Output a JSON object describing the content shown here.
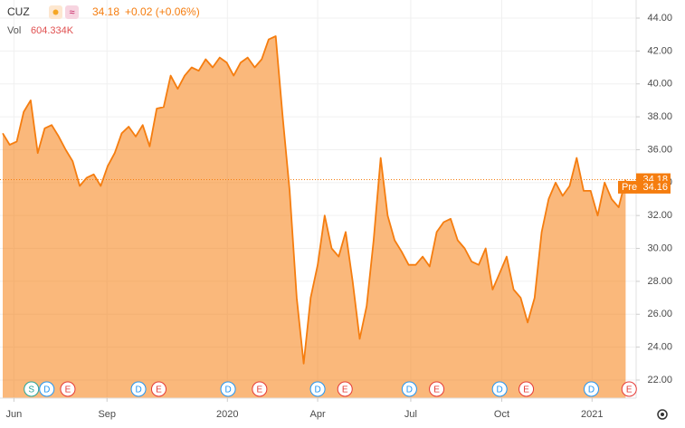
{
  "header": {
    "symbol": "CUZ",
    "price": "34.18",
    "change": "+0.02 (+0.06%)",
    "vol_label": "Vol",
    "volume": "604.334K"
  },
  "chart_data": {
    "type": "area",
    "color": "#f57d0f",
    "x": [
      0,
      1,
      2,
      3,
      4,
      5,
      6,
      7,
      8,
      9,
      10,
      11,
      12,
      13,
      14,
      15,
      16,
      17,
      18,
      19,
      20,
      21,
      22,
      23,
      24,
      25,
      26,
      27,
      28,
      29,
      30,
      31,
      32,
      33,
      34,
      35,
      36,
      37,
      38,
      39,
      40,
      41,
      42,
      43,
      44,
      45,
      46,
      47,
      48,
      49,
      50,
      51,
      52,
      53,
      54,
      55,
      56,
      57,
      58,
      59,
      60,
      61,
      62,
      63,
      64,
      65,
      66,
      67,
      68,
      69,
      70,
      71,
      72,
      73,
      74,
      75,
      76,
      77,
      78,
      79,
      80,
      81,
      82,
      83,
      84,
      85,
      86,
      87,
      88,
      89
    ],
    "series": [
      {
        "name": "CUZ",
        "color": "#f57d0f",
        "values": [
          37.0,
          36.3,
          36.5,
          38.3,
          39.0,
          35.8,
          37.3,
          37.5,
          36.8,
          36.0,
          35.3,
          33.8,
          34.3,
          34.5,
          33.8,
          35.0,
          35.8,
          37.0,
          37.4,
          36.8,
          37.5,
          36.2,
          38.5,
          38.6,
          40.5,
          39.7,
          40.5,
          41.0,
          40.8,
          41.5,
          41.0,
          41.6,
          41.3,
          40.5,
          41.3,
          41.6,
          41.0,
          41.5,
          42.7,
          42.9,
          38.0,
          33.5,
          27.0,
          23.0,
          27.0,
          29.0,
          32.0,
          30.0,
          29.5,
          31.0,
          28.0,
          24.5,
          26.5,
          30.5,
          35.5,
          32.0,
          30.5,
          29.8,
          29.0,
          29.0,
          29.5,
          28.9,
          31.0,
          31.6,
          31.8,
          30.5,
          30.0,
          29.2,
          29.0,
          30.0,
          27.5,
          28.5,
          29.5,
          27.5,
          27.0,
          25.5,
          27.0,
          31.0,
          33.0,
          34.0,
          33.2,
          33.8,
          35.5,
          33.5,
          33.5,
          32.0,
          34.0,
          33.0,
          32.5,
          34.18
        ]
      }
    ],
    "xlim": [
      0,
      90.5
    ],
    "xticks": [
      {
        "value": 1.6,
        "label": "Jun"
      },
      {
        "value": 14.9,
        "label": "Sep"
      },
      {
        "value": 32.1,
        "label": "2020"
      },
      {
        "value": 45,
        "label": "Apr"
      },
      {
        "value": 58.3,
        "label": "Jul"
      },
      {
        "value": 71.3,
        "label": "Oct"
      },
      {
        "value": 84.2,
        "label": "2021"
      }
    ],
    "ylim": [
      20.9,
      45.1
    ],
    "yticks": [
      {
        "value": 22,
        "label": "22.00"
      },
      {
        "value": 24,
        "label": "24.00"
      },
      {
        "value": 26,
        "label": "26.00"
      },
      {
        "value": 28,
        "label": "28.00"
      },
      {
        "value": 30,
        "label": "30.00"
      },
      {
        "value": 32,
        "label": "32.00"
      },
      {
        "value": 34,
        "label": "34.00"
      },
      {
        "value": 36,
        "label": "36.00"
      },
      {
        "value": 38,
        "label": "38.00"
      },
      {
        "value": 40,
        "label": "40.00"
      },
      {
        "value": 42,
        "label": "42.00"
      },
      {
        "value": 44,
        "label": "44.00"
      }
    ],
    "grid": true,
    "last_price": 34.18,
    "pre_label": "Pre",
    "pre_price": {
      "value": 34.16,
      "label": "34.16"
    },
    "events": [
      {
        "label": "S",
        "x": 4.1
      },
      {
        "label": "D",
        "x": 6.3
      },
      {
        "label": "E",
        "x": 9.3
      },
      {
        "label": "D",
        "x": 19.4
      },
      {
        "label": "E",
        "x": 22.3
      },
      {
        "label": "D",
        "x": 32.2
      },
      {
        "label": "E",
        "x": 36.7
      },
      {
        "label": "D",
        "x": 45.0
      },
      {
        "label": "E",
        "x": 48.9
      },
      {
        "label": "D",
        "x": 58.1
      },
      {
        "label": "E",
        "x": 62.0
      },
      {
        "label": "D",
        "x": 71.0
      },
      {
        "label": "E",
        "x": 74.8
      },
      {
        "label": "D",
        "x": 84.1
      },
      {
        "label": "E",
        "x": 89.5
      }
    ]
  }
}
